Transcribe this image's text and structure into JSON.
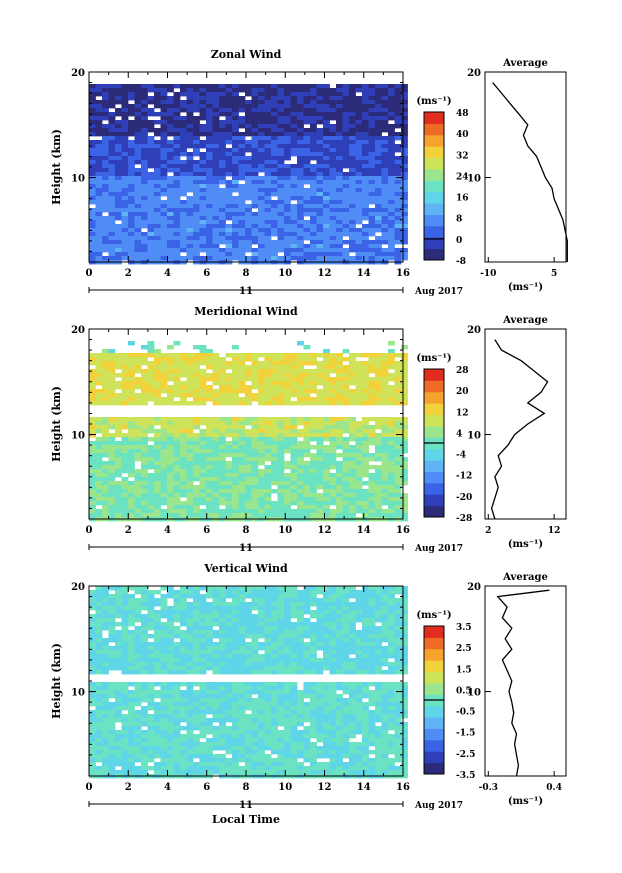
{
  "figure": {
    "date_label": "Aug 2017",
    "day_label": "11",
    "xlabel": "Local Time",
    "ylabel": "Height (km)",
    "unit_label": "(ms⁻¹)"
  },
  "colors": {
    "scale": [
      "#2b2b7a",
      "#2e3fb8",
      "#3a63e6",
      "#4f8cf5",
      "#5fb4f5",
      "#5fd6e8",
      "#6be3c2",
      "#9be68c",
      "#cfe35a",
      "#f2d23a",
      "#f5a32d",
      "#ee6a27",
      "#e02d20"
    ]
  },
  "chart_data": [
    {
      "type": "heatmap",
      "title": "Zonal Wind",
      "ylabel": "Height (km)",
      "x_ticks": [
        0,
        2,
        4,
        6,
        8,
        10,
        12,
        14,
        16
      ],
      "y_ticks": [
        10,
        20
      ],
      "xlim": [
        0,
        16
      ],
      "ylim": [
        2,
        20
      ],
      "colorbar_label": "(ms⁻¹)",
      "colorbar_ticks": [
        48,
        40,
        32,
        24,
        16,
        8,
        0,
        -8
      ],
      "colorbar_range": [
        -8,
        48
      ],
      "description_of_field": [
        {
          "height_range_km": [
            2,
            10.5
          ],
          "typical_value": 6
        },
        {
          "height_range_km": [
            10.5,
            14
          ],
          "typical_value": 0
        },
        {
          "height_range_km": [
            14,
            19
          ],
          "typical_value": -4
        }
      ],
      "average_panel": {
        "title": "Average",
        "x_ticks": [
          -10,
          5
        ],
        "xlabel": "(ms⁻¹)",
        "y_ticks": [
          10,
          20
        ],
        "profile": [
          [
            2,
            8
          ],
          [
            3,
            8
          ],
          [
            4,
            8
          ],
          [
            5,
            7.5
          ],
          [
            6,
            7
          ],
          [
            7,
            6
          ],
          [
            8,
            5
          ],
          [
            9,
            4.5
          ],
          [
            10,
            3
          ],
          [
            11,
            2
          ],
          [
            12,
            1
          ],
          [
            13,
            -1
          ],
          [
            14,
            -2
          ],
          [
            15,
            -1
          ],
          [
            16,
            -3
          ],
          [
            17,
            -5
          ],
          [
            18,
            -7
          ],
          [
            19,
            -9
          ]
        ]
      }
    },
    {
      "type": "heatmap",
      "title": "Meridional Wind",
      "ylabel": "Height (km)",
      "x_ticks": [
        0,
        2,
        4,
        6,
        8,
        10,
        12,
        14,
        16
      ],
      "y_ticks": [
        10,
        20
      ],
      "xlim": [
        0,
        16
      ],
      "ylim": [
        2,
        20
      ],
      "colorbar_label": "(ms⁻¹)",
      "colorbar_ticks": [
        28,
        20,
        12,
        4,
        -4,
        -12,
        -20,
        -28
      ],
      "colorbar_range": [
        -28,
        28
      ],
      "description_of_field": [
        {
          "height_range_km": [
            2,
            10
          ],
          "typical_value": 2
        },
        {
          "height_range_km": [
            10,
            12
          ],
          "typical_value": 8
        },
        {
          "height_range_km": [
            13,
            18
          ],
          "typical_value": 10
        }
      ],
      "average_panel": {
        "title": "Average",
        "x_ticks": [
          2,
          12
        ],
        "xlabel": "(ms⁻¹)",
        "y_ticks": [
          10,
          20
        ],
        "profile": [
          [
            2,
            3
          ],
          [
            3,
            2.5
          ],
          [
            4,
            3
          ],
          [
            5,
            3.5
          ],
          [
            6,
            3
          ],
          [
            7,
            4
          ],
          [
            8,
            3.5
          ],
          [
            9,
            5
          ],
          [
            10,
            6
          ],
          [
            11,
            8
          ],
          [
            12,
            10.5
          ],
          [
            13,
            8
          ],
          [
            14,
            10
          ],
          [
            15,
            11
          ],
          [
            16,
            9
          ],
          [
            17,
            7
          ],
          [
            18,
            4
          ],
          [
            19,
            3
          ]
        ]
      }
    },
    {
      "type": "heatmap",
      "title": "Vertical Wind",
      "ylabel": "Height (km)",
      "xlabel": "Local Time",
      "x_ticks": [
        0,
        2,
        4,
        6,
        8,
        10,
        12,
        14,
        16
      ],
      "y_ticks": [
        10,
        20
      ],
      "xlim": [
        0,
        16
      ],
      "ylim": [
        2,
        20
      ],
      "colorbar_label": "(ms⁻¹)",
      "colorbar_ticks": [
        3.5,
        2.5,
        1.5,
        0.5,
        -0.5,
        -1.5,
        -2.5,
        -3.5
      ],
      "colorbar_range": [
        -3.5,
        3.5
      ],
      "description_of_field": [
        {
          "height_range_km": [
            2,
            11
          ],
          "typical_value": -0.2
        },
        {
          "height_range_km": [
            12,
            20
          ],
          "typical_value": -0.3
        }
      ],
      "average_panel": {
        "title": "Average",
        "x_ticks": [
          -0.3,
          0.4
        ],
        "xlabel": "(ms⁻¹)",
        "y_ticks": [
          10,
          20
        ],
        "profile": [
          [
            2,
            0.0
          ],
          [
            3,
            0.02
          ],
          [
            4,
            0.0
          ],
          [
            5,
            -0.02
          ],
          [
            6,
            0.0
          ],
          [
            7,
            -0.05
          ],
          [
            8,
            -0.03
          ],
          [
            9,
            -0.05
          ],
          [
            10,
            -0.08
          ],
          [
            11,
            -0.05
          ],
          [
            12,
            -0.1
          ],
          [
            13,
            -0.15
          ],
          [
            14,
            -0.05
          ],
          [
            15,
            -0.12
          ],
          [
            16,
            -0.05
          ],
          [
            17,
            -0.15
          ],
          [
            18,
            -0.1
          ],
          [
            19,
            -0.2
          ],
          [
            19.6,
            0.35
          ]
        ]
      }
    }
  ]
}
